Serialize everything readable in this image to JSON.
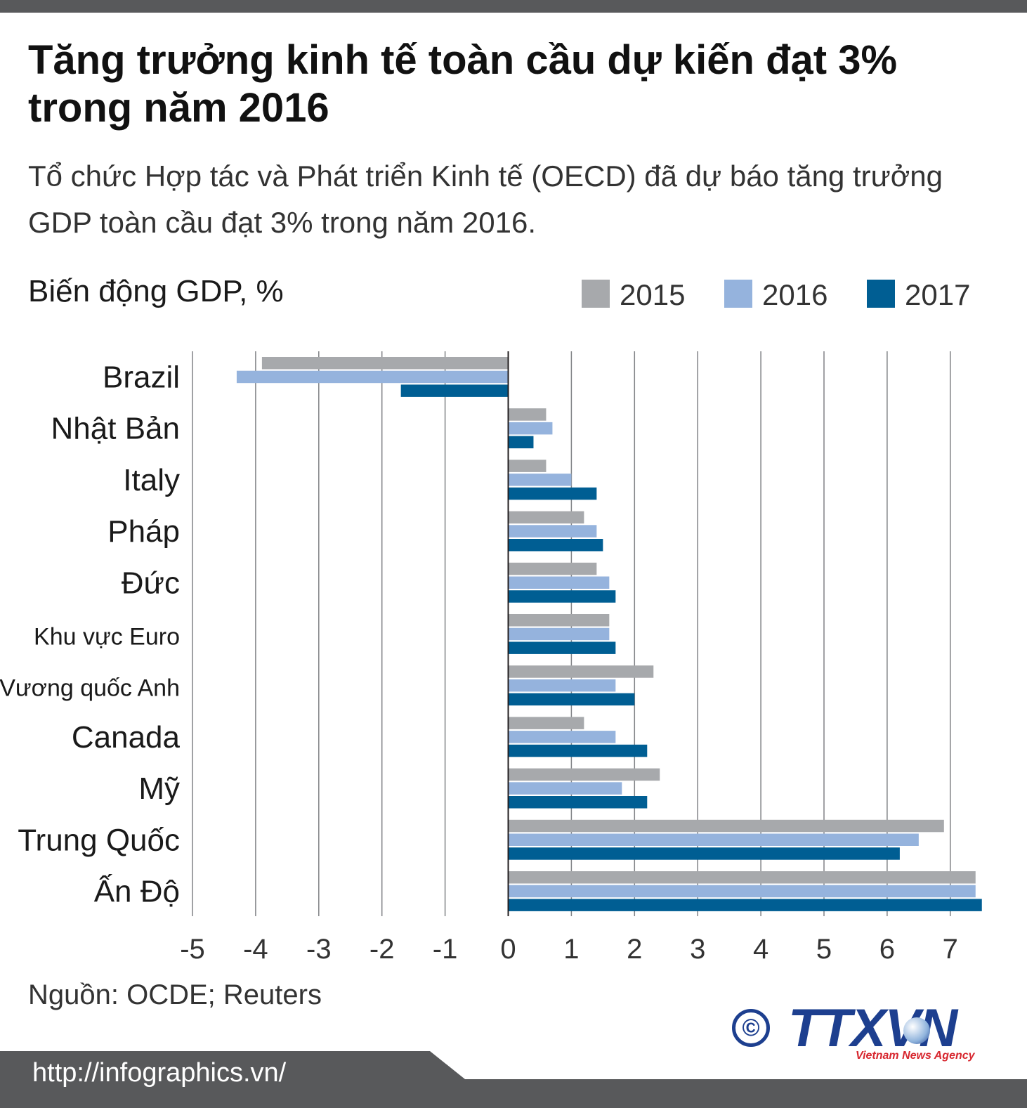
{
  "header": {
    "title": "Tăng trưởng kinh tế toàn cầu dự kiến đạt 3% trong năm 2016",
    "subtitle": "Tổ chức Hợp tác và Phát triển Kinh tế (OECD) đã dự báo tăng trưởng GDP toàn cầu đạt 3% trong năm 2016."
  },
  "chart_data": {
    "type": "bar",
    "orientation": "horizontal",
    "ylabel": "Biến động GDP, %",
    "xlabel": "",
    "categories": [
      "Brazil",
      "Nhật Bản",
      "Italy",
      "Pháp",
      "Đức",
      "Khu vực Euro",
      "Vương quốc Anh",
      "Canada",
      "Mỹ",
      "Trung Quốc",
      "Ấn Độ"
    ],
    "series": [
      {
        "name": "2015",
        "color": "#a7a9ac",
        "values": [
          -3.9,
          0.6,
          0.6,
          1.2,
          1.4,
          1.6,
          2.3,
          1.2,
          2.4,
          6.9,
          7.4
        ]
      },
      {
        "name": "2016",
        "color": "#95b3dd",
        "values": [
          -4.3,
          0.7,
          1.0,
          1.4,
          1.6,
          1.6,
          1.7,
          1.7,
          1.8,
          6.5,
          7.4
        ]
      },
      {
        "name": "2017",
        "color": "#005e93",
        "values": [
          -1.7,
          0.4,
          1.4,
          1.5,
          1.7,
          1.7,
          2.0,
          2.2,
          2.2,
          6.2,
          7.5
        ]
      }
    ],
    "xlim": [
      -5,
      7.5
    ],
    "xticks": [
      "-5",
      "-4",
      "-3",
      "-2",
      "-1",
      "0",
      "1",
      "2",
      "3",
      "4",
      "5",
      "6",
      "7"
    ],
    "grid": true,
    "legend": "top-right"
  },
  "source": "Nguồn: OCDE; Reuters",
  "logo": {
    "copyright": "©",
    "text": "TTXVN",
    "tagline": "Vietnam News Agency"
  },
  "footer": {
    "url": "http://infographics.vn/"
  },
  "colors": {
    "footer_bg": "#58595b",
    "axis": "#231f20",
    "grid": "#808285"
  }
}
